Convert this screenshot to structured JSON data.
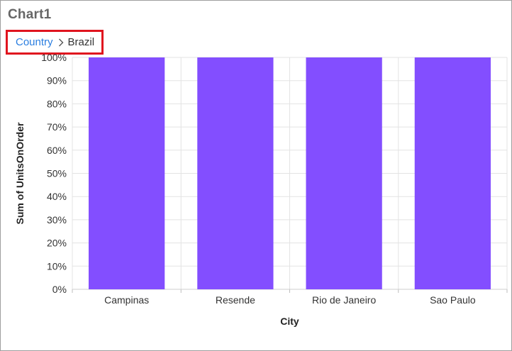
{
  "title": "Chart1",
  "breadcrumb": {
    "root": "Country",
    "current": "Brazil"
  },
  "colors": {
    "bar": "#834eff",
    "grid": "#e3e3e3",
    "highlight": "#e0141e",
    "link": "#2a7ee0"
  },
  "chart_data": {
    "type": "bar",
    "categories": [
      "Campinas",
      "Resende",
      "Rio de Janeiro",
      "Sao Paulo"
    ],
    "values": [
      100,
      100,
      100,
      100
    ],
    "xlabel": "City",
    "ylabel": "Sum of UnitsOnOrder",
    "ylim": [
      0,
      100
    ],
    "yticks": [
      0,
      10,
      20,
      30,
      40,
      50,
      60,
      70,
      80,
      90,
      100
    ],
    "y_format": "percent",
    "grid": true,
    "legend": "none"
  }
}
